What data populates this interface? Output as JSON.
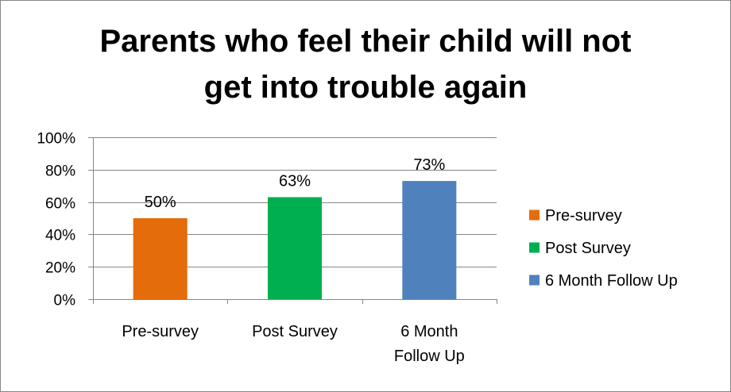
{
  "chart_data": {
    "type": "bar",
    "title_lines": [
      "Parents who feel their child will not",
      "get into trouble again"
    ],
    "categories": [
      "Pre-survey",
      "Post Survey",
      "6 Month Follow Up"
    ],
    "category_label_lines": [
      [
        "Pre-survey"
      ],
      [
        "Post Survey"
      ],
      [
        "6 Month",
        "Follow Up"
      ]
    ],
    "values": [
      50,
      63,
      73
    ],
    "data_labels": [
      "50%",
      "63%",
      "73%"
    ],
    "colors": [
      "#e46c0a",
      "#00b050",
      "#4f81bd"
    ],
    "ylim": [
      0,
      100
    ],
    "yticks": [
      0,
      20,
      40,
      60,
      80,
      100
    ],
    "ytick_labels": [
      "0%",
      "20%",
      "40%",
      "60%",
      "80%",
      "100%"
    ],
    "grid": true,
    "legend": {
      "placement": "right",
      "entries": [
        "Pre-survey",
        "Post Survey",
        "6 Month Follow Up"
      ]
    }
  }
}
